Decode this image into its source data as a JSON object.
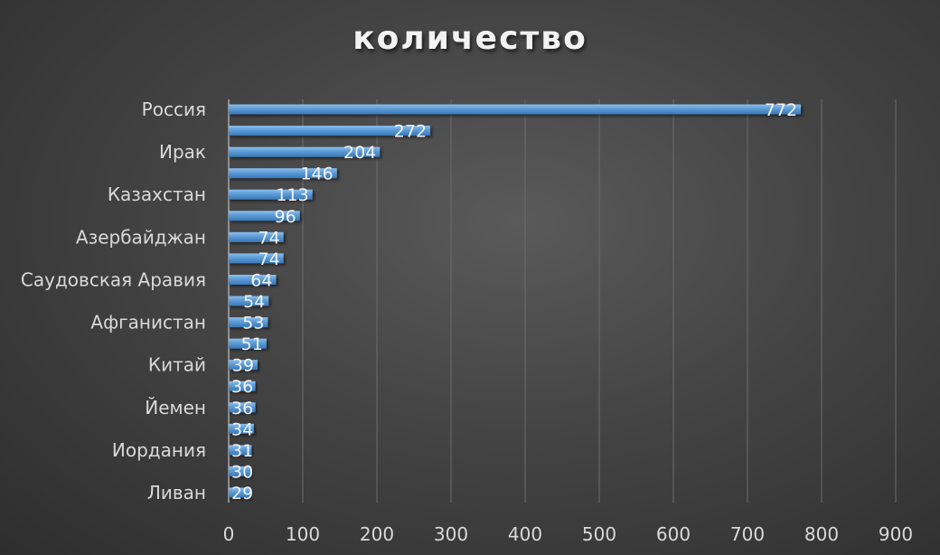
{
  "chart_data": {
    "type": "bar",
    "orientation": "horizontal",
    "title": "количество",
    "xlabel": "",
    "ylabel": "",
    "categories": [
      "Россия",
      "",
      "Ирак",
      "",
      "Казахстан",
      "",
      "Азербайджан",
      "",
      "Саудовская Аравия",
      "",
      "Афганистан",
      "",
      "Китай",
      "",
      "Йемен",
      "",
      "Иордания",
      "",
      "Ливан"
    ],
    "values": [
      772,
      272,
      204,
      146,
      113,
      96,
      74,
      74,
      64,
      54,
      53,
      51,
      39,
      36,
      36,
      34,
      31,
      30,
      29
    ],
    "xlim": [
      0,
      900
    ],
    "xticks": [
      0,
      100,
      200,
      300,
      400,
      500,
      600,
      700,
      800,
      900
    ],
    "grid": true,
    "data_labels": true,
    "legend": "none",
    "bar_color": "#5b9bd5",
    "background_color": "#404040"
  }
}
